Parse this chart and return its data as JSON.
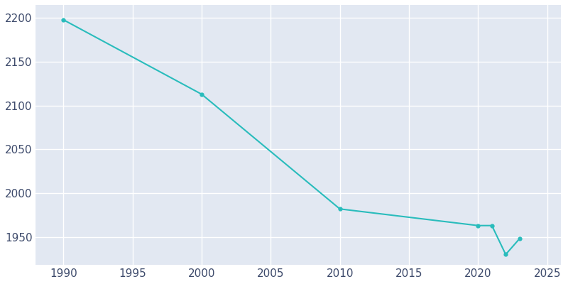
{
  "years": [
    1990,
    2000,
    2010,
    2020,
    2021,
    2022,
    2023
  ],
  "population": [
    2198,
    2113,
    1982,
    1963,
    1963,
    1930,
    1948
  ],
  "line_color": "#29BCBC",
  "marker": "o",
  "marker_size": 3.5,
  "plot_bg_color": "#E2E8F2",
  "fig_bg_color": "#FFFFFF",
  "grid_color": "#FFFFFF",
  "xlabel": "",
  "ylabel": "",
  "xlim": [
    1988,
    2026
  ],
  "ylim": [
    1918,
    2215
  ],
  "xticks": [
    1990,
    1995,
    2000,
    2005,
    2010,
    2015,
    2020,
    2025
  ],
  "yticks": [
    1950,
    2000,
    2050,
    2100,
    2150,
    2200
  ],
  "tick_label_color": "#3D4A6B",
  "tick_label_size": 11,
  "linewidth": 1.5
}
